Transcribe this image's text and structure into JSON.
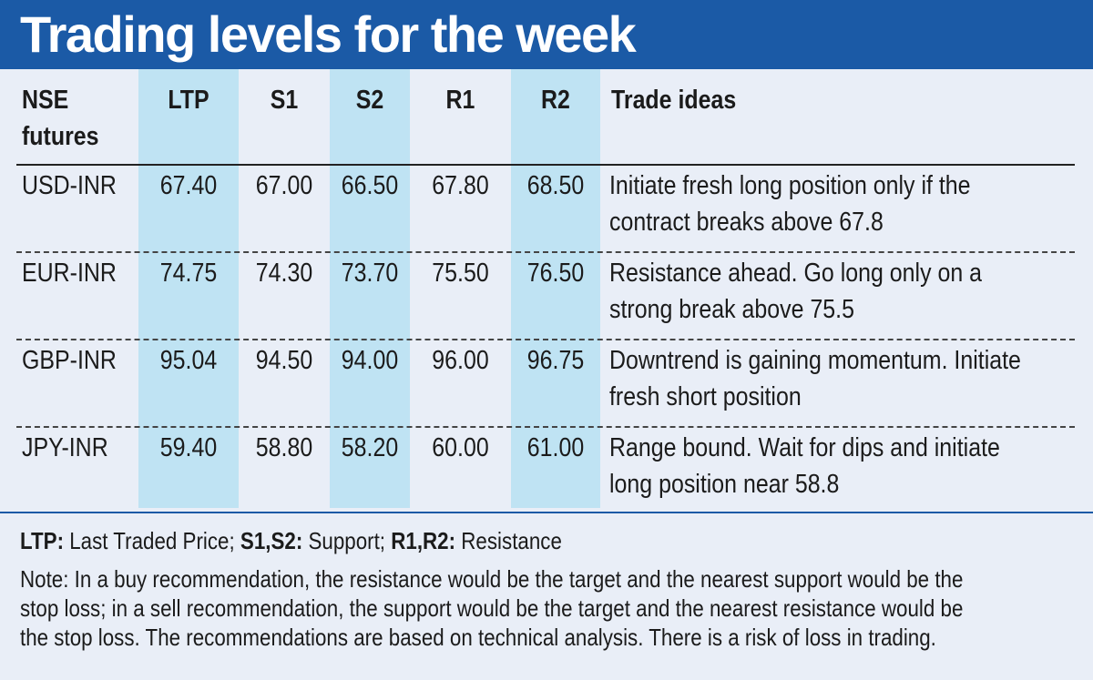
{
  "title": "Trading levels for the week",
  "colors": {
    "header": "#1b5aa6",
    "highlight": "#bfe3f3",
    "background": "#e9eef7"
  },
  "chart_data": {
    "type": "table",
    "title": "Trading levels for the week",
    "columns": [
      "NSE futures",
      "LTP",
      "S1",
      "S2",
      "R1",
      "R2",
      "Trade ideas"
    ],
    "rows": [
      {
        "futures": "USD-INR",
        "ltp": "67.40",
        "s1": "67.00",
        "s2": "66.50",
        "r1": "67.80",
        "r2": "68.50",
        "idea": "Initiate fresh long position only if the contract breaks above 67.8"
      },
      {
        "futures": "EUR-INR",
        "ltp": "74.75",
        "s1": "74.30",
        "s2": "73.70",
        "r1": "75.50",
        "r2": "76.50",
        "idea": "Resistance ahead. Go long only on a strong break above 75.5"
      },
      {
        "futures": "GBP-INR",
        "ltp": "95.04",
        "s1": "94.50",
        "s2": "94.00",
        "r1": "96.00",
        "r2": "96.75",
        "idea": "Downtrend is gaining momentum. Initiate fresh short position"
      },
      {
        "futures": "JPY-INR",
        "ltp": "59.40",
        "s1": "58.80",
        "s2": "58.20",
        "r1": "60.00",
        "r2": "61.00",
        "idea": "Range bound. Wait for dips and initiate long position near 58.8"
      }
    ]
  },
  "legend": {
    "ltp_key": "LTP:",
    "ltp_text": " Last Traded Price; ",
    "s_key": "S1,S2:",
    "s_text": " Support; ",
    "r_key": "R1,R2:",
    "r_text": " Resistance"
  },
  "note": "Note: In a buy recommendation, the resistance would be the target and the nearest support would be the stop loss; in a sell recommendation, the support would be the target and the nearest resistance would be the stop loss. The recommendations are based on technical analysis. There is a risk of loss in trading."
}
